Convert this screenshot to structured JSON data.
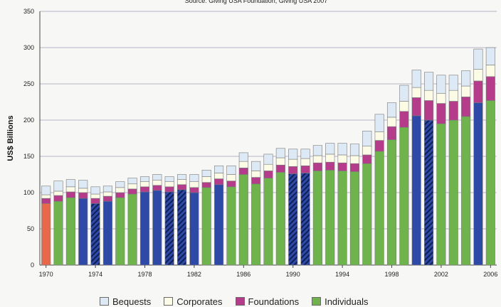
{
  "chart_data": {
    "type": "bar",
    "stacked": true,
    "title": "Source: Giving USA Foundation, Giving USA 2007",
    "xlabel": "",
    "ylabel": "US$ Billions",
    "ylim": [
      0,
      350
    ],
    "yticks": [
      0,
      50,
      100,
      150,
      200,
      250,
      300,
      350
    ],
    "xticks": [
      "1970",
      "1974",
      "1978",
      "1982",
      "1986",
      "1990",
      "1994",
      "1998",
      "2002",
      "2006"
    ],
    "grid": true,
    "legend_position": "bottom",
    "categories": [
      "1970",
      "1971",
      "1972",
      "1973",
      "1974",
      "1975",
      "1976",
      "1977",
      "1978",
      "1979",
      "1980",
      "1981",
      "1982",
      "1983",
      "1984",
      "1985",
      "1986",
      "1987",
      "1988",
      "1989",
      "1990",
      "1991",
      "1992",
      "1993",
      "1994",
      "1995",
      "1996",
      "1997",
      "1998",
      "1999",
      "2000",
      "2001",
      "2002",
      "2003",
      "2004",
      "2005",
      "2006"
    ],
    "economy": [
      "recession",
      "growth",
      "growth",
      "recession",
      "recession",
      "recession",
      "growth",
      "growth",
      "growth",
      "growth",
      "recession",
      "recession",
      "recession",
      "growth",
      "growth",
      "growth",
      "growth",
      "growth",
      "growth",
      "growth",
      "recession",
      "recession",
      "growth",
      "growth",
      "growth",
      "growth",
      "growth",
      "growth",
      "growth",
      "growth",
      "growth",
      "recession",
      "growth",
      "growth",
      "growth",
      "growth",
      "growth"
    ],
    "economy_colors": {
      "growth": "#6fb34c",
      "recession": "#e8694a",
      "recession-hatched": "#2f49a6"
    },
    "series": [
      {
        "name": "Individuals",
        "color": "#6fb34c",
        "values": [
          85,
          88,
          93,
          92,
          85,
          88,
          93,
          98,
          101,
          103,
          101,
          104,
          100,
          107,
          111,
          108,
          125,
          112,
          120,
          128,
          126,
          127,
          130,
          131,
          130,
          129,
          140,
          157,
          173,
          190,
          206,
          200,
          195,
          200,
          205,
          224,
          227
        ]
      },
      {
        "name": "Foundations",
        "color": "#b43c8a",
        "values": [
          7,
          8,
          8,
          8,
          7,
          7,
          7,
          7,
          7,
          7,
          7,
          7,
          7,
          7,
          8,
          8,
          9,
          9,
          10,
          10,
          10,
          10,
          11,
          11,
          11,
          11,
          12,
          15,
          18,
          22,
          25,
          27,
          28,
          26,
          27,
          30,
          33
        ]
      },
      {
        "name": "Corporates",
        "color": "#fbfbe6",
        "values": [
          5,
          6,
          7,
          6,
          6,
          6,
          7,
          7,
          7,
          7,
          7,
          7,
          8,
          8,
          8,
          9,
          9,
          9,
          9,
          10,
          10,
          10,
          10,
          11,
          11,
          11,
          12,
          12,
          13,
          14,
          14,
          14,
          14,
          15,
          15,
          16,
          16
        ]
      },
      {
        "name": "Bequests",
        "color": "#dde9f4",
        "values": [
          12,
          14,
          10,
          11,
          10,
          8,
          8,
          8,
          7,
          8,
          7,
          7,
          10,
          9,
          10,
          12,
          12,
          13,
          14,
          13,
          14,
          13,
          14,
          15,
          16,
          16,
          21,
          24,
          20,
          22,
          24,
          25,
          25,
          21,
          21,
          28,
          24
        ]
      }
    ]
  },
  "legend_colors": {
    "Bequests": "#dde9f4",
    "Corporates": "#fbfbe6",
    "Foundations": "#b43c8a",
    "Individuals": "#6fb34c"
  }
}
